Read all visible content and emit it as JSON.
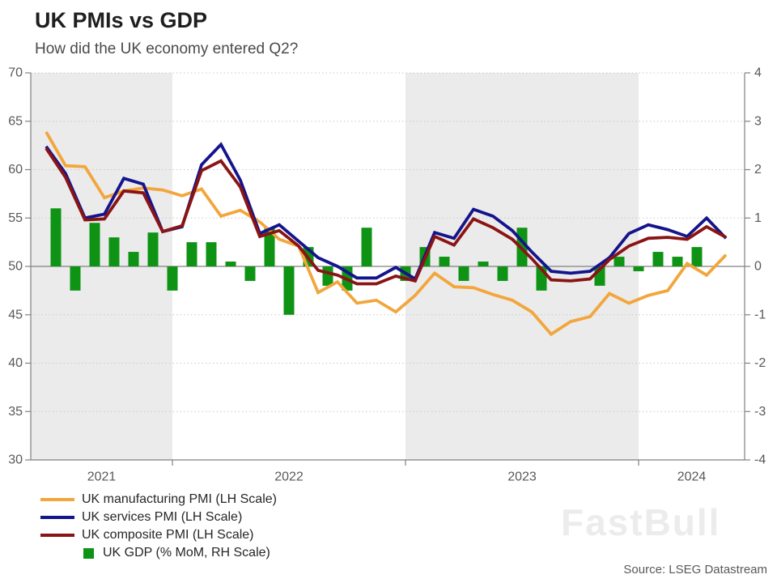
{
  "header": {
    "title": "UK PMIs vs GDP",
    "subtitle": "How did the UK economy entered Q2?"
  },
  "watermark": "FastBull",
  "source": "Source: LSEG Datastream",
  "chart_data": {
    "type": "mixed",
    "grid": "dotted horizontal gridlines, solid line at 50/0, alternating gray year bands",
    "band_color": "#ebebeb",
    "grid_color": "#c9c9c9",
    "axis_color": "#808080",
    "tick_label_color": "#595959",
    "x": {
      "year_tick_labels": [
        "2021",
        "2022",
        "2023",
        "2024"
      ],
      "months": [
        "Jun 2021",
        "Jul 2021",
        "Aug 2021",
        "Sep 2021",
        "Oct 2021",
        "Nov 2021",
        "Dec 2021",
        "Jan 2022",
        "Feb 2022",
        "Mar 2022",
        "Apr 2022",
        "May 2022",
        "Jun 2022",
        "Jul 2022",
        "Aug 2022",
        "Sep 2022",
        "Oct 2022",
        "Nov 2022",
        "Dec 2022",
        "Jan 2023",
        "Feb 2023",
        "Mar 2023",
        "Apr 2023",
        "May 2023",
        "Jun 2023",
        "Jul 2023",
        "Aug 2023",
        "Sep 2023",
        "Oct 2023",
        "Nov 2023",
        "Dec 2023",
        "Jan 2024",
        "Feb 2024",
        "Mar 2024",
        "Apr 2024",
        "May 2024"
      ]
    },
    "left_axis": {
      "min": 30,
      "max": 70,
      "ticks": [
        70,
        65,
        60,
        55,
        50,
        45,
        40,
        35,
        30
      ]
    },
    "right_axis": {
      "min": -4,
      "max": 4,
      "ticks": [
        4,
        3,
        2,
        1,
        0,
        -1,
        -2,
        -3,
        -4
      ]
    },
    "series": [
      {
        "id": "manufacturing",
        "type": "line",
        "axis": "left",
        "color": "#F2A63C",
        "name": "UK manufacturing PMI (LH Scale)",
        "values": [
          63.9,
          60.4,
          60.3,
          57.1,
          57.8,
          58.1,
          57.9,
          57.3,
          58.0,
          55.2,
          55.8,
          54.6,
          52.8,
          52.1,
          47.3,
          48.4,
          46.2,
          46.5,
          45.3,
          47.0,
          49.3,
          47.9,
          47.8,
          47.1,
          46.5,
          45.3,
          43.0,
          44.3,
          44.8,
          47.2,
          46.2,
          47.0,
          47.5,
          50.3,
          49.1,
          51.2
        ]
      },
      {
        "id": "services",
        "type": "line",
        "axis": "left",
        "color": "#14148C",
        "name": "UK services PMI (LH Scale)",
        "values": [
          62.4,
          59.6,
          55.0,
          55.4,
          59.1,
          58.5,
          53.6,
          54.1,
          60.5,
          62.6,
          58.9,
          53.4,
          54.3,
          52.6,
          50.9,
          50.0,
          48.8,
          48.8,
          49.9,
          48.7,
          53.5,
          52.9,
          55.9,
          55.2,
          53.7,
          51.5,
          49.5,
          49.3,
          49.5,
          50.9,
          53.4,
          54.3,
          53.8,
          53.1,
          55.0,
          52.9
        ]
      },
      {
        "id": "composite",
        "type": "line",
        "axis": "left",
        "color": "#8A1414",
        "name": "UK composite PMI (LH Scale)",
        "values": [
          62.2,
          59.2,
          54.8,
          54.9,
          57.8,
          57.6,
          53.6,
          54.2,
          59.9,
          60.9,
          58.2,
          53.1,
          53.7,
          52.1,
          49.6,
          49.1,
          48.2,
          48.2,
          49.0,
          48.5,
          53.1,
          52.2,
          54.9,
          54.0,
          52.8,
          50.8,
          48.6,
          48.5,
          48.7,
          50.7,
          52.1,
          52.9,
          53.0,
          52.8,
          54.1,
          53.0
        ]
      },
      {
        "id": "gdp",
        "type": "bar",
        "axis": "right",
        "color": "#0E9314",
        "name": "UK GDP (% MoM, RH Scale)",
        "values": [
          1.2,
          -0.5,
          0.9,
          0.6,
          0.3,
          0.7,
          -0.5,
          0.5,
          0.5,
          0.1,
          -0.3,
          0.8,
          -1.0,
          0.4,
          -0.4,
          -0.5,
          0.8,
          0.0,
          -0.3,
          0.4,
          0.2,
          -0.3,
          0.1,
          -0.3,
          0.8,
          -0.5,
          0.0,
          0.0,
          -0.4,
          0.2,
          -0.1,
          0.3,
          0.2,
          0.4
        ]
      }
    ]
  }
}
